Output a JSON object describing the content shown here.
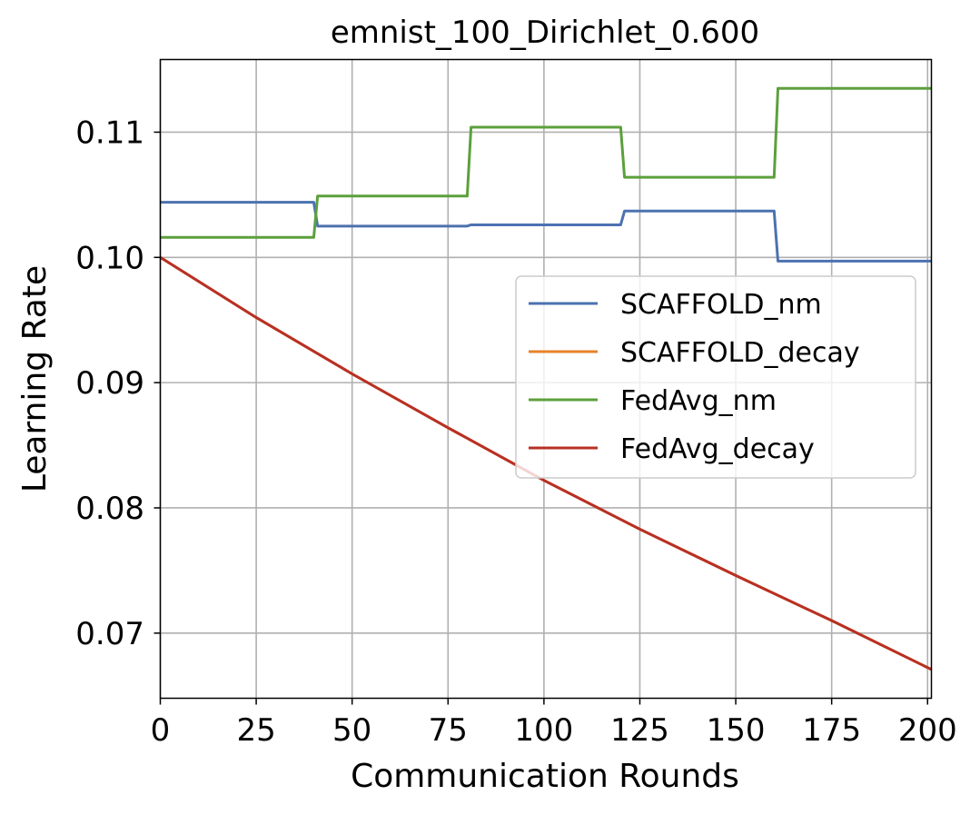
{
  "chart_data": {
    "type": "line",
    "title": "emnist_100_Dirichlet_0.600",
    "xlabel": "Communication Rounds",
    "ylabel": "Learning Rate",
    "xlim": [
      0,
      201
    ],
    "ylim": [
      0.0648,
      0.1158
    ],
    "xticks": [
      0,
      25,
      50,
      75,
      100,
      125,
      150,
      175,
      200
    ],
    "yticks": [
      0.07,
      0.08,
      0.09,
      0.1,
      0.11
    ],
    "xtick_labels": [
      "0",
      "25",
      "50",
      "75",
      "100",
      "125",
      "150",
      "175",
      "200"
    ],
    "ytick_labels": [
      "0.07",
      "0.08",
      "0.09",
      "0.10",
      "0.11"
    ],
    "grid": true,
    "legend_position": "center-right",
    "series": [
      {
        "name": "SCAFFOLD_nm",
        "color": "#4c72b0",
        "x": [
          0,
          40,
          41,
          80,
          81,
          120,
          121,
          160,
          161,
          201
        ],
        "y": [
          0.1044,
          0.1044,
          0.1025,
          0.1025,
          0.1026,
          0.1026,
          0.1037,
          0.1037,
          0.0997,
          0.0997
        ]
      },
      {
        "name": "SCAFFOLD_decay",
        "color": "#e6832a",
        "x": [
          0,
          25,
          50,
          75,
          100,
          125,
          150,
          175,
          201
        ],
        "y": [
          0.1,
          0.0952,
          0.0907,
          0.0864,
          0.0822,
          0.0783,
          0.0746,
          0.071,
          0.0671
        ]
      },
      {
        "name": "FedAvg_nm",
        "color": "#5ca03c",
        "x": [
          0,
          40,
          41,
          80,
          81,
          120,
          121,
          160,
          161,
          201
        ],
        "y": [
          0.1016,
          0.1016,
          0.1049,
          0.1049,
          0.1104,
          0.1104,
          0.1064,
          0.1064,
          0.1135,
          0.1135
        ]
      },
      {
        "name": "FedAvg_decay",
        "color": "#b83025",
        "x": [
          0,
          25,
          50,
          75,
          100,
          125,
          150,
          175,
          201
        ],
        "y": [
          0.1,
          0.0952,
          0.0907,
          0.0864,
          0.0822,
          0.0783,
          0.0746,
          0.071,
          0.0671
        ]
      }
    ]
  }
}
